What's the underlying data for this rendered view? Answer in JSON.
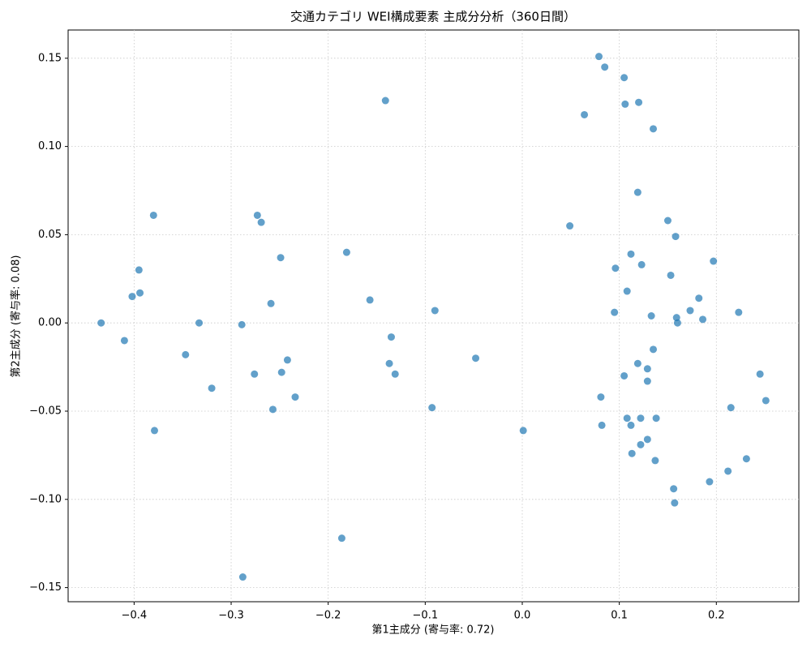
{
  "chart_data": {
    "type": "scatter",
    "title": "交通カテゴリ WEI構成要素 主成分分析（360日間）",
    "x_label": "第1主成分 (寄与率: 0.72)",
    "y_label": "第2主成分 (寄与率: 0.08)",
    "color": "#1f77b4",
    "grid": true,
    "xlim": [
      -0.468,
      0.285
    ],
    "ylim": [
      -0.158,
      0.166
    ],
    "xticks": [
      {
        "value": -0.4,
        "label": "−0.4"
      },
      {
        "value": -0.3,
        "label": "−0.3"
      },
      {
        "value": -0.2,
        "label": "−0.2"
      },
      {
        "value": -0.1,
        "label": "−0.1"
      },
      {
        "value": 0,
        "label": "0.0"
      },
      0.1,
      0.2
    ],
    "yticks": [
      {
        "value": -0.15,
        "label": "−0.15"
      },
      {
        "value": -0.1,
        "label": "−0.10"
      },
      {
        "value": -0.05,
        "label": "−0.05"
      },
      {
        "value": 0,
        "label": "0.00"
      },
      0.05,
      {
        "value": 0.1,
        "label": "0.10"
      },
      0.15
    ],
    "x": [
      0.079,
      0.085,
      0.105,
      0.106,
      0.12,
      -0.141,
      0.064,
      0.135,
      0.119,
      -0.38,
      -0.273,
      -0.269,
      0.049,
      0.15,
      0.158,
      -0.181,
      0.112,
      -0.249,
      0.197,
      0.123,
      0.096,
      -0.395,
      0.153,
      -0.394,
      0.108,
      -0.402,
      -0.157,
      0.182,
      -0.259,
      -0.09,
      0.173,
      0.095,
      0.223,
      0.133,
      0.159,
      0.186,
      -0.434,
      -0.333,
      0.16,
      -0.289,
      -0.135,
      -0.41,
      0.135,
      -0.347,
      -0.048,
      -0.242,
      -0.137,
      0.119,
      0.129,
      -0.248,
      -0.131,
      -0.276,
      0.245,
      0.105,
      0.129,
      -0.32,
      -0.234,
      0.081,
      0.251,
      0.215,
      -0.257,
      -0.093,
      0.108,
      0.122,
      0.138,
      0.082,
      0.112,
      -0.379,
      0.001,
      0.129,
      0.122,
      0.113,
      0.231,
      0.137,
      0.212,
      0.193,
      0.156,
      0.157,
      -0.186,
      -0.288
    ],
    "y": [
      0.151,
      0.145,
      0.139,
      0.124,
      0.125,
      0.126,
      0.118,
      0.11,
      0.074,
      0.061,
      0.061,
      0.057,
      0.055,
      0.058,
      0.049,
      0.04,
      0.039,
      0.037,
      0.035,
      0.033,
      0.031,
      0.03,
      0.027,
      0.017,
      0.018,
      0.015,
      0.013,
      0.014,
      0.011,
      0.007,
      0.007,
      0.006,
      0.006,
      0.004,
      0.003,
      0.002,
      0.0,
      0.0,
      0.0,
      -0.001,
      -0.008,
      -0.01,
      -0.015,
      -0.018,
      -0.02,
      -0.021,
      -0.023,
      -0.023,
      -0.026,
      -0.028,
      -0.029,
      -0.029,
      -0.029,
      -0.03,
      -0.033,
      -0.037,
      -0.042,
      -0.042,
      -0.044,
      -0.048,
      -0.049,
      -0.048,
      -0.054,
      -0.054,
      -0.054,
      -0.058,
      -0.058,
      -0.061,
      -0.061,
      -0.066,
      -0.069,
      -0.074,
      -0.077,
      -0.078,
      -0.084,
      -0.09,
      -0.094,
      -0.102,
      -0.122,
      -0.144
    ]
  }
}
